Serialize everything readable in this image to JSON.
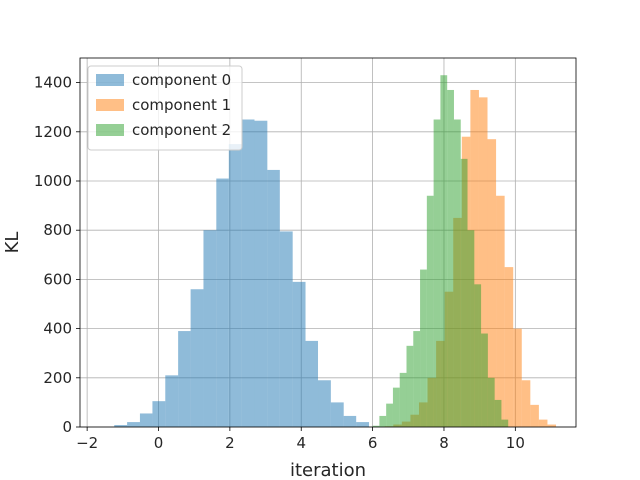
{
  "chart_data": {
    "type": "bar",
    "xlabel": "iteration",
    "ylabel": "KL",
    "xlim": [
      -2.2,
      11.7
    ],
    "ylim": [
      0,
      1500
    ],
    "xticks": [
      -2,
      0,
      2,
      4,
      6,
      8,
      10
    ],
    "yticks": [
      0,
      200,
      400,
      600,
      800,
      1000,
      1200,
      1400
    ],
    "grid": true,
    "legend_position": "top-left",
    "series": [
      {
        "name": "component 0",
        "color": "#1f77b4",
        "opacity": 0.5,
        "bin_edges": [
          -1.24,
          -0.88,
          -0.52,
          -0.17,
          0.19,
          0.55,
          0.9,
          1.26,
          1.62,
          1.97,
          2.33,
          2.69,
          3.05,
          3.4,
          3.76,
          4.12,
          4.47,
          4.83,
          5.19,
          5.54,
          5.9
        ],
        "counts": [
          8,
          20,
          55,
          105,
          210,
          390,
          560,
          800,
          1010,
          1150,
          1250,
          1245,
          1045,
          795,
          590,
          350,
          190,
          100,
          45,
          20
        ]
      },
      {
        "name": "component 1",
        "color": "#ff7f0e",
        "opacity": 0.5,
        "bin_edges": [
          6.34,
          6.58,
          6.82,
          7.06,
          7.3,
          7.54,
          7.78,
          8.02,
          8.26,
          8.5,
          8.74,
          8.98,
          9.22,
          9.46,
          9.7,
          9.94,
          10.18,
          10.42,
          10.66,
          10.9,
          11.14
        ],
        "counts": [
          3,
          10,
          22,
          50,
          100,
          200,
          350,
          550,
          850,
          1180,
          1370,
          1340,
          1170,
          940,
          650,
          400,
          190,
          90,
          30,
          10
        ]
      },
      {
        "name": "component 2",
        "color": "#2ca02c",
        "opacity": 0.5,
        "bin_edges": [
          6.0,
          6.19,
          6.38,
          6.57,
          6.76,
          6.95,
          7.14,
          7.33,
          7.52,
          7.71,
          7.9,
          8.09,
          8.28,
          8.47,
          8.66,
          8.85,
          9.04,
          9.23,
          9.42,
          9.61,
          9.8
        ],
        "counts": [
          5,
          45,
          95,
          160,
          220,
          330,
          390,
          640,
          940,
          1250,
          1430,
          1370,
          1250,
          1090,
          800,
          580,
          380,
          200,
          110,
          30
        ]
      }
    ]
  }
}
